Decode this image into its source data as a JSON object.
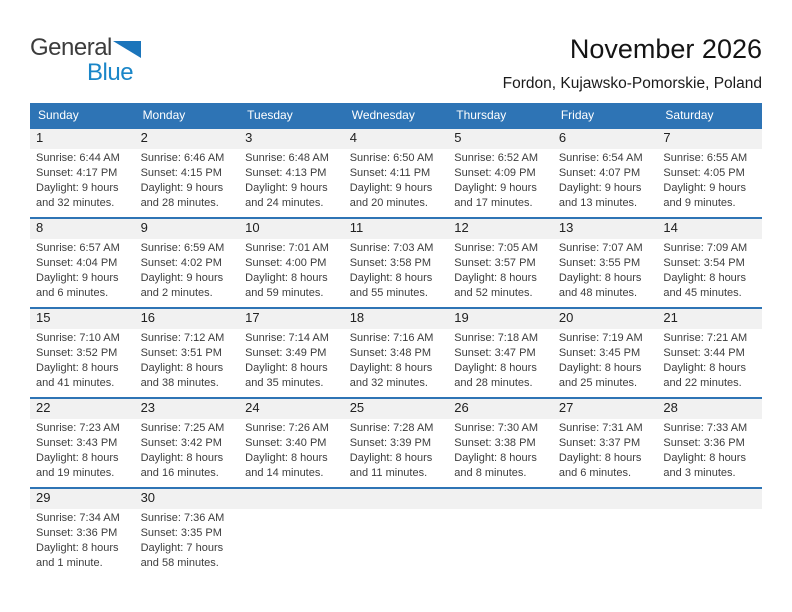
{
  "logo": {
    "part1": "General",
    "part2": "Blue",
    "triangle_color": "#1B75BB",
    "blue_text_color": "#1a86c8"
  },
  "header": {
    "title": "November 2026",
    "location": "Fordon, Kujawsko-Pomorskie, Poland"
  },
  "colors": {
    "header_blue": "#2E74B5",
    "week_border_blue": "#2E74B5",
    "number_band_gray": "#F1F1F1"
  },
  "weekdays": [
    "Sunday",
    "Monday",
    "Tuesday",
    "Wednesday",
    "Thursday",
    "Friday",
    "Saturday"
  ],
  "weeks": [
    [
      {
        "day": "1",
        "sunrise": "Sunrise: 6:44 AM",
        "sunset": "Sunset: 4:17 PM",
        "daylight1": "Daylight: 9 hours",
        "daylight2": "and 32 minutes."
      },
      {
        "day": "2",
        "sunrise": "Sunrise: 6:46 AM",
        "sunset": "Sunset: 4:15 PM",
        "daylight1": "Daylight: 9 hours",
        "daylight2": "and 28 minutes."
      },
      {
        "day": "3",
        "sunrise": "Sunrise: 6:48 AM",
        "sunset": "Sunset: 4:13 PM",
        "daylight1": "Daylight: 9 hours",
        "daylight2": "and 24 minutes."
      },
      {
        "day": "4",
        "sunrise": "Sunrise: 6:50 AM",
        "sunset": "Sunset: 4:11 PM",
        "daylight1": "Daylight: 9 hours",
        "daylight2": "and 20 minutes."
      },
      {
        "day": "5",
        "sunrise": "Sunrise: 6:52 AM",
        "sunset": "Sunset: 4:09 PM",
        "daylight1": "Daylight: 9 hours",
        "daylight2": "and 17 minutes."
      },
      {
        "day": "6",
        "sunrise": "Sunrise: 6:54 AM",
        "sunset": "Sunset: 4:07 PM",
        "daylight1": "Daylight: 9 hours",
        "daylight2": "and 13 minutes."
      },
      {
        "day": "7",
        "sunrise": "Sunrise: 6:55 AM",
        "sunset": "Sunset: 4:05 PM",
        "daylight1": "Daylight: 9 hours",
        "daylight2": "and 9 minutes."
      }
    ],
    [
      {
        "day": "8",
        "sunrise": "Sunrise: 6:57 AM",
        "sunset": "Sunset: 4:04 PM",
        "daylight1": "Daylight: 9 hours",
        "daylight2": "and 6 minutes."
      },
      {
        "day": "9",
        "sunrise": "Sunrise: 6:59 AM",
        "sunset": "Sunset: 4:02 PM",
        "daylight1": "Daylight: 9 hours",
        "daylight2": "and 2 minutes."
      },
      {
        "day": "10",
        "sunrise": "Sunrise: 7:01 AM",
        "sunset": "Sunset: 4:00 PM",
        "daylight1": "Daylight: 8 hours",
        "daylight2": "and 59 minutes."
      },
      {
        "day": "11",
        "sunrise": "Sunrise: 7:03 AM",
        "sunset": "Sunset: 3:58 PM",
        "daylight1": "Daylight: 8 hours",
        "daylight2": "and 55 minutes."
      },
      {
        "day": "12",
        "sunrise": "Sunrise: 7:05 AM",
        "sunset": "Sunset: 3:57 PM",
        "daylight1": "Daylight: 8 hours",
        "daylight2": "and 52 minutes."
      },
      {
        "day": "13",
        "sunrise": "Sunrise: 7:07 AM",
        "sunset": "Sunset: 3:55 PM",
        "daylight1": "Daylight: 8 hours",
        "daylight2": "and 48 minutes."
      },
      {
        "day": "14",
        "sunrise": "Sunrise: 7:09 AM",
        "sunset": "Sunset: 3:54 PM",
        "daylight1": "Daylight: 8 hours",
        "daylight2": "and 45 minutes."
      }
    ],
    [
      {
        "day": "15",
        "sunrise": "Sunrise: 7:10 AM",
        "sunset": "Sunset: 3:52 PM",
        "daylight1": "Daylight: 8 hours",
        "daylight2": "and 41 minutes."
      },
      {
        "day": "16",
        "sunrise": "Sunrise: 7:12 AM",
        "sunset": "Sunset: 3:51 PM",
        "daylight1": "Daylight: 8 hours",
        "daylight2": "and 38 minutes."
      },
      {
        "day": "17",
        "sunrise": "Sunrise: 7:14 AM",
        "sunset": "Sunset: 3:49 PM",
        "daylight1": "Daylight: 8 hours",
        "daylight2": "and 35 minutes."
      },
      {
        "day": "18",
        "sunrise": "Sunrise: 7:16 AM",
        "sunset": "Sunset: 3:48 PM",
        "daylight1": "Daylight: 8 hours",
        "daylight2": "and 32 minutes."
      },
      {
        "day": "19",
        "sunrise": "Sunrise: 7:18 AM",
        "sunset": "Sunset: 3:47 PM",
        "daylight1": "Daylight: 8 hours",
        "daylight2": "and 28 minutes."
      },
      {
        "day": "20",
        "sunrise": "Sunrise: 7:19 AM",
        "sunset": "Sunset: 3:45 PM",
        "daylight1": "Daylight: 8 hours",
        "daylight2": "and 25 minutes."
      },
      {
        "day": "21",
        "sunrise": "Sunrise: 7:21 AM",
        "sunset": "Sunset: 3:44 PM",
        "daylight1": "Daylight: 8 hours",
        "daylight2": "and 22 minutes."
      }
    ],
    [
      {
        "day": "22",
        "sunrise": "Sunrise: 7:23 AM",
        "sunset": "Sunset: 3:43 PM",
        "daylight1": "Daylight: 8 hours",
        "daylight2": "and 19 minutes."
      },
      {
        "day": "23",
        "sunrise": "Sunrise: 7:25 AM",
        "sunset": "Sunset: 3:42 PM",
        "daylight1": "Daylight: 8 hours",
        "daylight2": "and 16 minutes."
      },
      {
        "day": "24",
        "sunrise": "Sunrise: 7:26 AM",
        "sunset": "Sunset: 3:40 PM",
        "daylight1": "Daylight: 8 hours",
        "daylight2": "and 14 minutes."
      },
      {
        "day": "25",
        "sunrise": "Sunrise: 7:28 AM",
        "sunset": "Sunset: 3:39 PM",
        "daylight1": "Daylight: 8 hours",
        "daylight2": "and 11 minutes."
      },
      {
        "day": "26",
        "sunrise": "Sunrise: 7:30 AM",
        "sunset": "Sunset: 3:38 PM",
        "daylight1": "Daylight: 8 hours",
        "daylight2": "and 8 minutes."
      },
      {
        "day": "27",
        "sunrise": "Sunrise: 7:31 AM",
        "sunset": "Sunset: 3:37 PM",
        "daylight1": "Daylight: 8 hours",
        "daylight2": "and 6 minutes."
      },
      {
        "day": "28",
        "sunrise": "Sunrise: 7:33 AM",
        "sunset": "Sunset: 3:36 PM",
        "daylight1": "Daylight: 8 hours",
        "daylight2": "and 3 minutes."
      }
    ],
    [
      {
        "day": "29",
        "sunrise": "Sunrise: 7:34 AM",
        "sunset": "Sunset: 3:36 PM",
        "daylight1": "Daylight: 8 hours",
        "daylight2": "and 1 minute."
      },
      {
        "day": "30",
        "sunrise": "Sunrise: 7:36 AM",
        "sunset": "Sunset: 3:35 PM",
        "daylight1": "Daylight: 7 hours",
        "daylight2": "and 58 minutes."
      },
      null,
      null,
      null,
      null,
      null
    ]
  ]
}
